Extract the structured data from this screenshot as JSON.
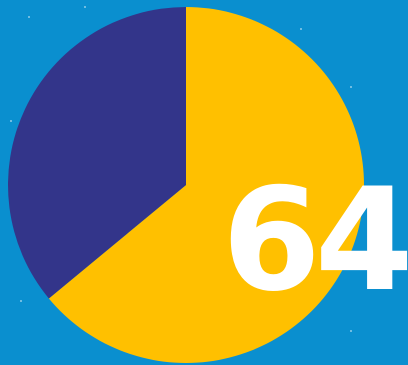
{
  "colors": {
    "background": "#0a8fcf",
    "slice_primary": "#ffc000",
    "slice_secondary": "#33358a",
    "label": "#ffffff"
  },
  "highlight": {
    "text": "64"
  },
  "chart_data": {
    "type": "pie",
    "title": "",
    "labels": [
      "",
      ""
    ],
    "values": [
      64,
      36
    ],
    "colors": [
      "#ffc000",
      "#33358a"
    ],
    "start_angle_deg": 0,
    "direction": "clockwise",
    "legend": "none"
  }
}
